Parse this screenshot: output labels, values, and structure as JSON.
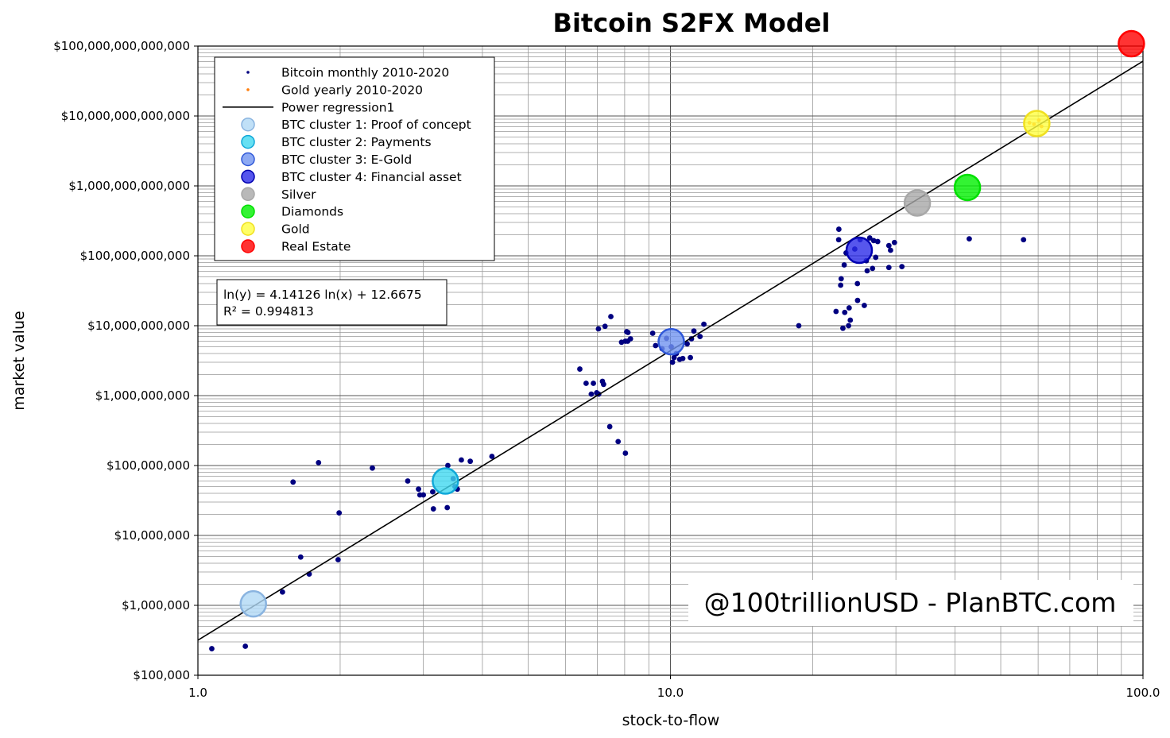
{
  "chart_data": {
    "type": "scatter",
    "title": "Bitcoin S2FX Model",
    "xlabel": "stock-to-flow",
    "ylabel": "market value",
    "x_scale": "log",
    "y_scale": "log",
    "xlim": [
      1,
      100
    ],
    "ylim": [
      100000,
      100000000000000
    ],
    "grid": true,
    "x_ticks": [
      {
        "value": 1,
        "label": "1.0"
      },
      {
        "value": 10,
        "label": "10.0"
      },
      {
        "value": 100,
        "label": "100.0"
      }
    ],
    "y_ticks": [
      {
        "value": 100000,
        "label": "$100,000"
      },
      {
        "value": 1000000,
        "label": "$1,000,000"
      },
      {
        "value": 10000000,
        "label": "$10,000,000"
      },
      {
        "value": 100000000,
        "label": "$100,000,000"
      },
      {
        "value": 1000000000,
        "label": "$1,000,000,000"
      },
      {
        "value": 10000000000,
        "label": "$10,000,000,000"
      },
      {
        "value": 100000000000,
        "label": "$100,000,000,000"
      },
      {
        "value": 1000000000000,
        "label": "$1,000,000,000,000"
      },
      {
        "value": 10000000000000,
        "label": "$10,000,000,000,000"
      },
      {
        "value": 100000000000000,
        "label": "$100,000,000,000,000"
      }
    ],
    "regression": {
      "name": "Power regression1",
      "slope": 4.14126,
      "intercept": 12.6675,
      "equation": "ln(y) = 4.14126 ln(x) + 12.6675",
      "r2": "R² = 0.994813",
      "color": "#000000"
    },
    "legend_position": "top-left",
    "series": [
      {
        "name": "Bitcoin monthly 2010-2020",
        "kind": "dots",
        "color": "#000080",
        "points": [
          [
            1.07,
            240000
          ],
          [
            1.26,
            260000
          ],
          [
            1.51,
            1550000
          ],
          [
            1.65,
            4900000
          ],
          [
            1.72,
            2800000
          ],
          [
            1.98,
            4500000
          ],
          [
            1.59,
            58000000
          ],
          [
            1.8,
            110000000
          ],
          [
            1.99,
            21000000
          ],
          [
            2.34,
            92000000
          ],
          [
            2.78,
            60000000
          ],
          [
            2.93,
            46000000
          ],
          [
            2.95,
            38000000
          ],
          [
            3.0,
            38000000
          ],
          [
            3.14,
            42000000
          ],
          [
            3.15,
            24000000
          ],
          [
            3.37,
            25000000
          ],
          [
            3.38,
            100000000
          ],
          [
            3.47,
            65000000
          ],
          [
            3.5,
            50000000
          ],
          [
            3.54,
            46000000
          ],
          [
            3.61,
            120000000
          ],
          [
            3.77,
            115000000
          ],
          [
            4.19,
            135000000
          ],
          [
            6.43,
            2400000000
          ],
          [
            6.63,
            1500000000
          ],
          [
            6.8,
            1050000000
          ],
          [
            6.87,
            1500000000
          ],
          [
            6.98,
            1100000000
          ],
          [
            7.05,
            1050000000
          ],
          [
            7.04,
            9000000000
          ],
          [
            7.18,
            1600000000
          ],
          [
            7.22,
            1450000000
          ],
          [
            7.27,
            9800000000
          ],
          [
            7.48,
            13500000000
          ],
          [
            7.44,
            360000000
          ],
          [
            7.75,
            220000000
          ],
          [
            7.88,
            5800000000
          ],
          [
            8.03,
            6000000000
          ],
          [
            8.03,
            150000000
          ],
          [
            8.08,
            8200000000
          ],
          [
            8.13,
            8000000000
          ],
          [
            8.23,
            6500000000
          ],
          [
            8.12,
            6000000000
          ],
          [
            9.17,
            7800000000
          ],
          [
            9.3,
            5200000000
          ],
          [
            9.6,
            4700000000
          ],
          [
            9.81,
            6600000000
          ],
          [
            10.04,
            5000000000
          ],
          [
            10.1,
            3000000000
          ],
          [
            10.18,
            3500000000
          ],
          [
            10.29,
            4000000000
          ],
          [
            10.46,
            3300000000
          ],
          [
            10.62,
            3400000000
          ],
          [
            10.85,
            5500000000
          ],
          [
            11.02,
            3500000000
          ],
          [
            11.08,
            6500000000
          ],
          [
            11.21,
            8400000000
          ],
          [
            11.55,
            7000000000
          ],
          [
            11.77,
            10500000000
          ],
          [
            18.69,
            10000000000
          ],
          [
            22.41,
            16000000000
          ],
          [
            22.7,
            170000000000
          ],
          [
            22.72,
            240000000000
          ],
          [
            22.92,
            38000000000
          ],
          [
            22.98,
            47000000000
          ],
          [
            23.17,
            9200000000
          ],
          [
            23.32,
            74000000000
          ],
          [
            23.38,
            15500000000
          ],
          [
            23.53,
            110000000000
          ],
          [
            23.82,
            10000000000
          ],
          [
            23.89,
            18000000000
          ],
          [
            24.02,
            12000000000
          ],
          [
            24.55,
            125000000000
          ],
          [
            24.87,
            40000000000
          ],
          [
            24.89,
            23000000000
          ],
          [
            25.2,
            170000000000
          ],
          [
            25.72,
            19500000000
          ],
          [
            25.98,
            85000000000
          ],
          [
            26.08,
            61000000000
          ],
          [
            26.41,
            180000000000
          ],
          [
            26.77,
            66000000000
          ],
          [
            26.92,
            165000000000
          ],
          [
            27.19,
            95000000000
          ],
          [
            27.45,
            160000000000
          ],
          [
            28.99,
            140000000000
          ],
          [
            28.99,
            68000000000
          ],
          [
            29.23,
            120000000000
          ],
          [
            29.79,
            155000000000
          ],
          [
            30.89,
            70000000000
          ],
          [
            42.89,
            175000000000
          ],
          [
            55.88,
            170000000000
          ]
        ]
      },
      {
        "name": "Gold yearly 2010-2020",
        "kind": "dots",
        "color": "#ff7f0e",
        "points": [
          [
            57.5,
            8000000000000
          ],
          [
            58.8,
            7600000000000
          ],
          [
            60.2,
            8700000000000
          ],
          [
            61.0,
            7100000000000
          ]
        ]
      },
      {
        "name": "BTC cluster 1: Proof of concept",
        "kind": "cluster",
        "color": "#b0d8f5",
        "edge": "#8ab4e0",
        "points": [
          [
            1.31,
            1050000
          ]
        ]
      },
      {
        "name": "BTC cluster 2: Payments",
        "kind": "cluster",
        "color": "#40d8f0",
        "edge": "#10a8d8",
        "points": [
          [
            3.34,
            60000000
          ]
        ]
      },
      {
        "name": "BTC cluster 3: E-Gold",
        "kind": "cluster",
        "color": "#7094f0",
        "edge": "#3058d8",
        "points": [
          [
            10.04,
            5900000000
          ]
        ]
      },
      {
        "name": "BTC cluster 4: Financial asset",
        "kind": "cluster",
        "color": "#2c2ce8",
        "edge": "#0000b0",
        "points": [
          [
            25.09,
            120000000000
          ]
        ]
      },
      {
        "name": "Silver",
        "kind": "cluster",
        "color": "#a8a8a8",
        "edge": "#a8a8a8",
        "points": [
          [
            33.3,
            570000000000
          ]
        ]
      },
      {
        "name": "Diamonds",
        "kind": "cluster",
        "color": "#00f000",
        "edge": "#00e000",
        "points": [
          [
            42.5,
            950000000000
          ]
        ]
      },
      {
        "name": "Gold",
        "kind": "cluster",
        "color": "#ffff40",
        "edge": "#f0e020",
        "points": [
          [
            59.6,
            7800000000000
          ]
        ]
      },
      {
        "name": "Real Estate",
        "kind": "cluster",
        "color": "#ff0000",
        "edge": "#ff0000",
        "points": [
          [
            94.5,
            108000000000000
          ]
        ]
      }
    ]
  },
  "legend": {
    "items": [
      "Bitcoin monthly 2010-2020",
      "Gold yearly 2010-2020",
      "Power regression1",
      "BTC cluster 1: Proof of concept",
      "BTC cluster 2: Payments",
      "BTC cluster 3: E-Gold",
      "BTC cluster 4: Financial asset",
      "Silver",
      "Diamonds",
      "Gold",
      "Real Estate"
    ]
  },
  "equation_box": {
    "line1": "ln(y) = 4.14126 ln(x) + 12.6675",
    "line2": "R² = 0.994813"
  },
  "watermark": "@100trillionUSD  -  PlanBTC.com"
}
